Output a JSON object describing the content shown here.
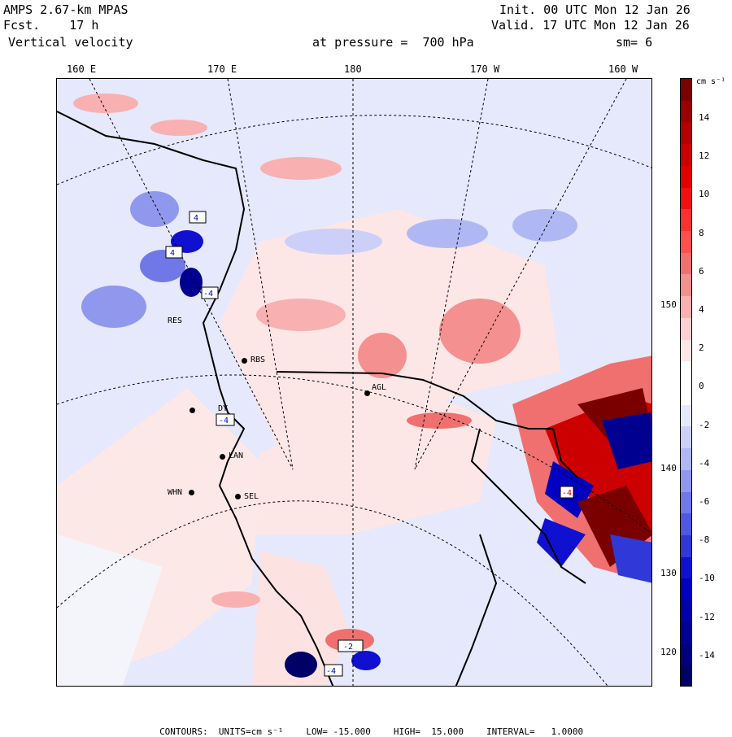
{
  "header": {
    "model": "AMPS 2.67-km MPAS",
    "forecast": "Fcst.    17 h",
    "field": "Vertical velocity",
    "init": "Init. 00 UTC Mon 12 Jan 26",
    "valid": "Valid. 17 UTC Mon 12 Jan 26",
    "pressure": "at pressure =  700 hPa",
    "smoothing": "sm= 6"
  },
  "longitude_labels": [
    "160 E",
    "170 E",
    "180",
    "170 W",
    "160 W"
  ],
  "latitude_labels": [
    "150 W",
    "140 W",
    "130 W",
    "120 W"
  ],
  "stations": [
    "RES",
    "RBS",
    "AGL",
    "DY",
    "LAN",
    "WHN",
    "SEL"
  ],
  "contour_labels": [
    "4",
    "4",
    "-4",
    "-4",
    "-4",
    "-2",
    "-4"
  ],
  "colorbar": {
    "units": "cm s⁻¹",
    "ticks": [
      "14",
      "12",
      "10",
      "8",
      "6",
      "4",
      "2",
      "0",
      "-2",
      "-4",
      "-6",
      "-8",
      "-10",
      "-12",
      "-14"
    ],
    "colors": [
      "#7a0000",
      "#9a0000",
      "#b40000",
      "#cc0000",
      "#e00000",
      "#f01010",
      "#ff3030",
      "#ff5050",
      "#f07070",
      "#f49090",
      "#f8b0b0",
      "#fcd0d0",
      "#fde6e6",
      "#ffffff",
      "#ffffff",
      "#e6e8fc",
      "#ccd0f8",
      "#b0b8f4",
      "#9098ee",
      "#7078e8",
      "#5058e0",
      "#3038d8",
      "#1010d0",
      "#0000c0",
      "#0000a8",
      "#000090",
      "#00007a",
      "#000066"
    ]
  },
  "footer": {
    "contours": "CONTOURS:  UNITS=cm s⁻¹",
    "low": "LOW= -15.000",
    "high": "HIGH=  15.000",
    "interval": "INTERVAL=   1.0000"
  },
  "colors": {
    "positive_light": "#fde2e2",
    "negative_light": "#e6e8fc",
    "ice_white": "#ffffff",
    "coast": "#000000"
  }
}
